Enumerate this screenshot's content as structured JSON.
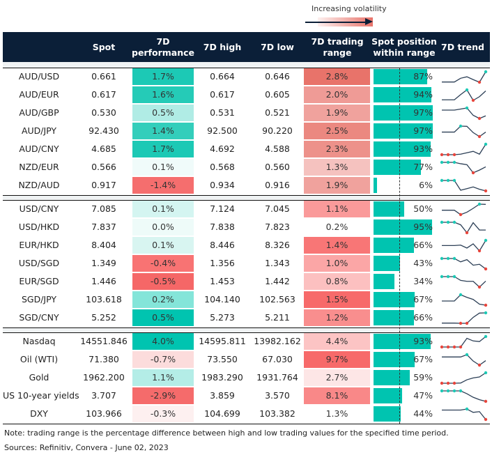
{
  "legend": {
    "label": "Increasing volatility"
  },
  "header": {
    "name": "",
    "spot": "Spot",
    "perf": "7D performance",
    "high": "7D high",
    "low": "7D low",
    "range": "7D trading range",
    "pos": "Spot position within range",
    "trend": "7D trend"
  },
  "colors": {
    "header_bg": "#0b1f38",
    "bar": "#00c4b0",
    "trend_line": "#2b3e55",
    "trend_max": "#1cc9b5",
    "trend_min": "#e8453c"
  },
  "groups": [
    {
      "rows": [
        {
          "name": "AUD/USD",
          "spot": "0.661",
          "perf": "1.7%",
          "perf_color": "#1cc9b5",
          "high": "0.664",
          "low": "0.646",
          "range": "2.8%",
          "range_color": "#e8736a",
          "pos": "87%",
          "pos_value": 87,
          "trend": [
            0.02,
            0.02,
            0.02,
            0.38,
            0.52,
            0.25,
            0,
            1
          ]
        },
        {
          "name": "AUD/EUR",
          "spot": "0.617",
          "perf": "1.6%",
          "perf_color": "#25cbb7",
          "high": "0.617",
          "low": "0.605",
          "range": "2.0%",
          "range_color": "#ef9b96",
          "pos": "94%",
          "pos_value": 94,
          "trend": [
            0.05,
            0.05,
            0.05,
            0.55,
            1,
            0,
            0.35,
            0.9
          ]
        },
        {
          "name": "AUD/GBP",
          "spot": "0.530",
          "perf": "0.5%",
          "perf_color": "#b0ece5",
          "high": "0.531",
          "low": "0.521",
          "range": "1.9%",
          "range_color": "#f0a29d",
          "pos": "97%",
          "pos_value": 97,
          "trend": [
            0.8,
            0.8,
            0.8,
            0.9,
            1,
            0.3,
            0,
            0.25
          ]
        },
        {
          "name": "AUD/JPY",
          "spot": "92.430",
          "perf": "1.4%",
          "perf_color": "#33cebb",
          "high": "92.500",
          "low": "90.220",
          "range": "2.5%",
          "range_color": "#eb8880",
          "pos": "97%",
          "pos_value": 97,
          "trend": [
            0.43,
            0.43,
            0.43,
            1,
            0.98,
            0.38,
            0,
            0.43
          ]
        },
        {
          "name": "AUD/CNY",
          "spot": "4.685",
          "perf": "1.7%",
          "perf_color": "#1cc9b5",
          "high": "4.692",
          "low": "4.588",
          "range": "2.3%",
          "range_color": "#ed918a",
          "pos": "93%",
          "pos_value": 93,
          "trend": [
            0,
            0,
            0,
            0.05,
            0.18,
            0.32,
            0.05,
            1
          ]
        },
        {
          "name": "NZD/EUR",
          "spot": "0.566",
          "perf": "0.1%",
          "perf_color": "#f0fbfa",
          "high": "0.568",
          "low": "0.560",
          "range": "1.3%",
          "range_color": "#f5c2bf",
          "pos": "77%",
          "pos_value": 77,
          "trend": [
            1,
            1,
            1,
            0.87,
            0.78,
            0,
            0.26,
            0.57
          ]
        },
        {
          "name": "NZD/AUD",
          "spot": "0.917",
          "perf": "-1.4%",
          "perf_color": "#f56e6e",
          "high": "0.934",
          "low": "0.916",
          "range": "1.9%",
          "range_color": "#f0a29d",
          "pos": "6%",
          "pos_value": 6,
          "trend": [
            1,
            1,
            1,
            0.07,
            0.22,
            0.38,
            0.16,
            0
          ]
        }
      ]
    },
    {
      "rows": [
        {
          "name": "USD/CNY",
          "spot": "7.085",
          "perf": "0.1%",
          "perf_color": "#d4f5f1",
          "high": "7.124",
          "low": "7.045",
          "range": "1.1%",
          "range_color": "#fa9a9a",
          "pos": "50%",
          "pos_value": 50,
          "trend": [
            0.42,
            0.42,
            0.42,
            0,
            0.23,
            0.6,
            1,
            0.98
          ]
        },
        {
          "name": "USD/HKD",
          "spot": "7.837",
          "perf": "0.0%",
          "perf_color": "#eefbf9",
          "high": "7.838",
          "low": "7.823",
          "range": "0.2%",
          "range_color": "#ffffff",
          "pos": "95%",
          "pos_value": 95,
          "trend": [
            1,
            1,
            1,
            0.76,
            0,
            0.96,
            0.26,
            0.26
          ]
        },
        {
          "name": "EUR/HKD",
          "spot": "8.404",
          "perf": "0.1%",
          "perf_color": "#d8f5f1",
          "high": "8.446",
          "low": "8.326",
          "range": "1.4%",
          "range_color": "#f87676",
          "pos": "66%",
          "pos_value": 66,
          "trend": [
            0.51,
            0.51,
            0.51,
            0.55,
            0.27,
            0.67,
            0,
            1
          ]
        },
        {
          "name": "USD/SGD",
          "spot": "1.349",
          "perf": "-0.4%",
          "perf_color": "#f87373",
          "high": "1.356",
          "low": "1.343",
          "range": "1.0%",
          "range_color": "#fba6a6",
          "pos": "43%",
          "pos_value": 43,
          "trend": [
            1,
            1,
            1,
            0.68,
            0.89,
            0.36,
            0.45,
            0
          ]
        },
        {
          "name": "EUR/SGD",
          "spot": "1.446",
          "perf": "-0.5%",
          "perf_color": "#f56767",
          "high": "1.453",
          "low": "1.442",
          "range": "0.8%",
          "range_color": "#fcc0c0",
          "pos": "34%",
          "pos_value": 34,
          "trend": [
            1,
            1,
            1,
            0.64,
            0.55,
            0.55,
            0,
            0.57
          ]
        },
        {
          "name": "SGD/JPY",
          "spot": "103.618",
          "perf": "0.2%",
          "perf_color": "#84e5d9",
          "high": "104.140",
          "low": "102.563",
          "range": "1.5%",
          "range_color": "#f76a6a",
          "pos": "67%",
          "pos_value": 67,
          "trend": [
            0.4,
            0.4,
            0.4,
            1,
            0.75,
            0.55,
            0.1,
            0
          ]
        },
        {
          "name": "SGD/CNY",
          "spot": "5.252",
          "perf": "0.5%",
          "perf_color": "#00c4b0",
          "high": "5.273",
          "low": "5.211",
          "range": "1.2%",
          "range_color": "#f98e8e",
          "pos": "66%",
          "pos_value": 66,
          "trend": [
            0.02,
            0.02,
            0.02,
            0,
            0,
            0.57,
            0.98,
            1
          ]
        }
      ]
    },
    {
      "rows": [
        {
          "name": "Nasdaq",
          "spot": "14551.846",
          "perf": "4.0%",
          "perf_color": "#00c4b0",
          "high": "14595.811",
          "low": "13982.162",
          "range": "4.4%",
          "range_color": "#fcc4c4",
          "pos": "93%",
          "pos_value": 93,
          "trend": [
            0,
            0,
            0,
            0,
            0.83,
            0.58,
            0.52,
            1
          ]
        },
        {
          "name": "Oil (WTI)",
          "spot": "71.380",
          "perf": "-0.7%",
          "perf_color": "#fcdcdc",
          "high": "73.550",
          "low": "67.030",
          "range": "9.7%",
          "range_color": "#f76a6a",
          "pos": "67%",
          "pos_value": 67,
          "trend": [
            0.78,
            0.78,
            0.78,
            0.78,
            1,
            0.39,
            0,
            0.43
          ]
        },
        {
          "name": "Gold",
          "spot": "1962.200",
          "perf": "1.1%",
          "perf_color": "#b4ede7",
          "high": "1983.290",
          "low": "1931.764",
          "range": "2.7%",
          "range_color": "#fde6e6",
          "pos": "59%",
          "pos_value": 59,
          "trend": [
            0,
            0,
            0,
            0.02,
            0.33,
            0.51,
            0.6,
            1
          ]
        },
        {
          "name": "US 10-year yields",
          "spot": "3.707",
          "perf": "-2.9%",
          "perf_color": "#f56b6b",
          "high": "3.859",
          "low": "3.570",
          "range": "8.1%",
          "range_color": "#f98888",
          "pos": "47%",
          "pos_value": 47,
          "trend": [
            1,
            1,
            1,
            1,
            0.73,
            0.39,
            0.16,
            0
          ]
        },
        {
          "name": "DXY",
          "spot": "103.966",
          "perf": "-0.3%",
          "perf_color": "#fdf0f0",
          "high": "104.699",
          "low": "103.382",
          "range": "1.3%",
          "range_color": "#ffffff",
          "pos": "44%",
          "pos_value": 44,
          "trend": [
            0.9,
            0.9,
            0.9,
            0.9,
            1,
            0.68,
            0.75,
            0
          ]
        }
      ]
    }
  ],
  "footer": {
    "note": "Note: trading range is the percentage difference between high and low trading values for the specified time period.",
    "sources": "Sources: Refinitiv, Convera - June 02, 2023"
  }
}
